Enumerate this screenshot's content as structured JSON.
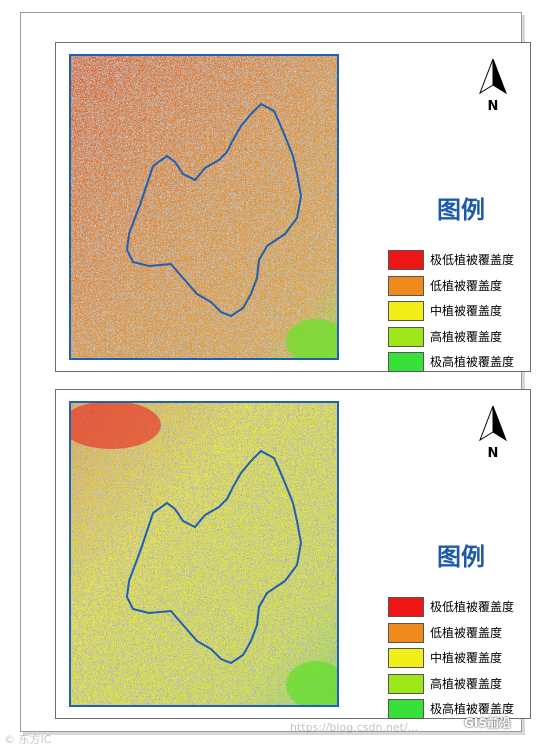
{
  "colors": {
    "very_low": "#ee1515",
    "low": "#f08a1c",
    "medium": "#f2ee1a",
    "high": "#9ee81a",
    "very_high": "#38e03a",
    "boundary": "#1f5fb4",
    "legend_title": "#1e5aa8"
  },
  "maps": [
    {
      "north_arrow": {
        "icon": "north-arrow-icon",
        "label": "N"
      },
      "legend": {
        "title": "图例",
        "items": [
          {
            "label": "极低植被覆盖度",
            "color": "#ee1515"
          },
          {
            "label": "低植被覆盖度",
            "color": "#f08a1c"
          },
          {
            "label": "中植被覆盖度",
            "color": "#f2ee1a"
          },
          {
            "label": "高植被覆盖度",
            "color": "#9ee81a"
          },
          {
            "label": "极高植被覆盖度",
            "color": "#38e03a"
          }
        ]
      }
    },
    {
      "north_arrow": {
        "icon": "north-arrow-icon",
        "label": "N"
      },
      "legend": {
        "title": "图例",
        "items": [
          {
            "label": "极低植被覆盖度",
            "color": "#ee1515"
          },
          {
            "label": "低植被覆盖度",
            "color": "#f08a1c"
          },
          {
            "label": "中植被覆盖度",
            "color": "#f2ee1a"
          },
          {
            "label": "高植被覆盖度",
            "color": "#9ee81a"
          },
          {
            "label": "极高植被覆盖度",
            "color": "#38e03a"
          }
        ]
      }
    }
  ],
  "watermarks": {
    "left": "© 东方IC",
    "center": "https://blog.csdn.net/...",
    "brand": "GIS前沿"
  }
}
